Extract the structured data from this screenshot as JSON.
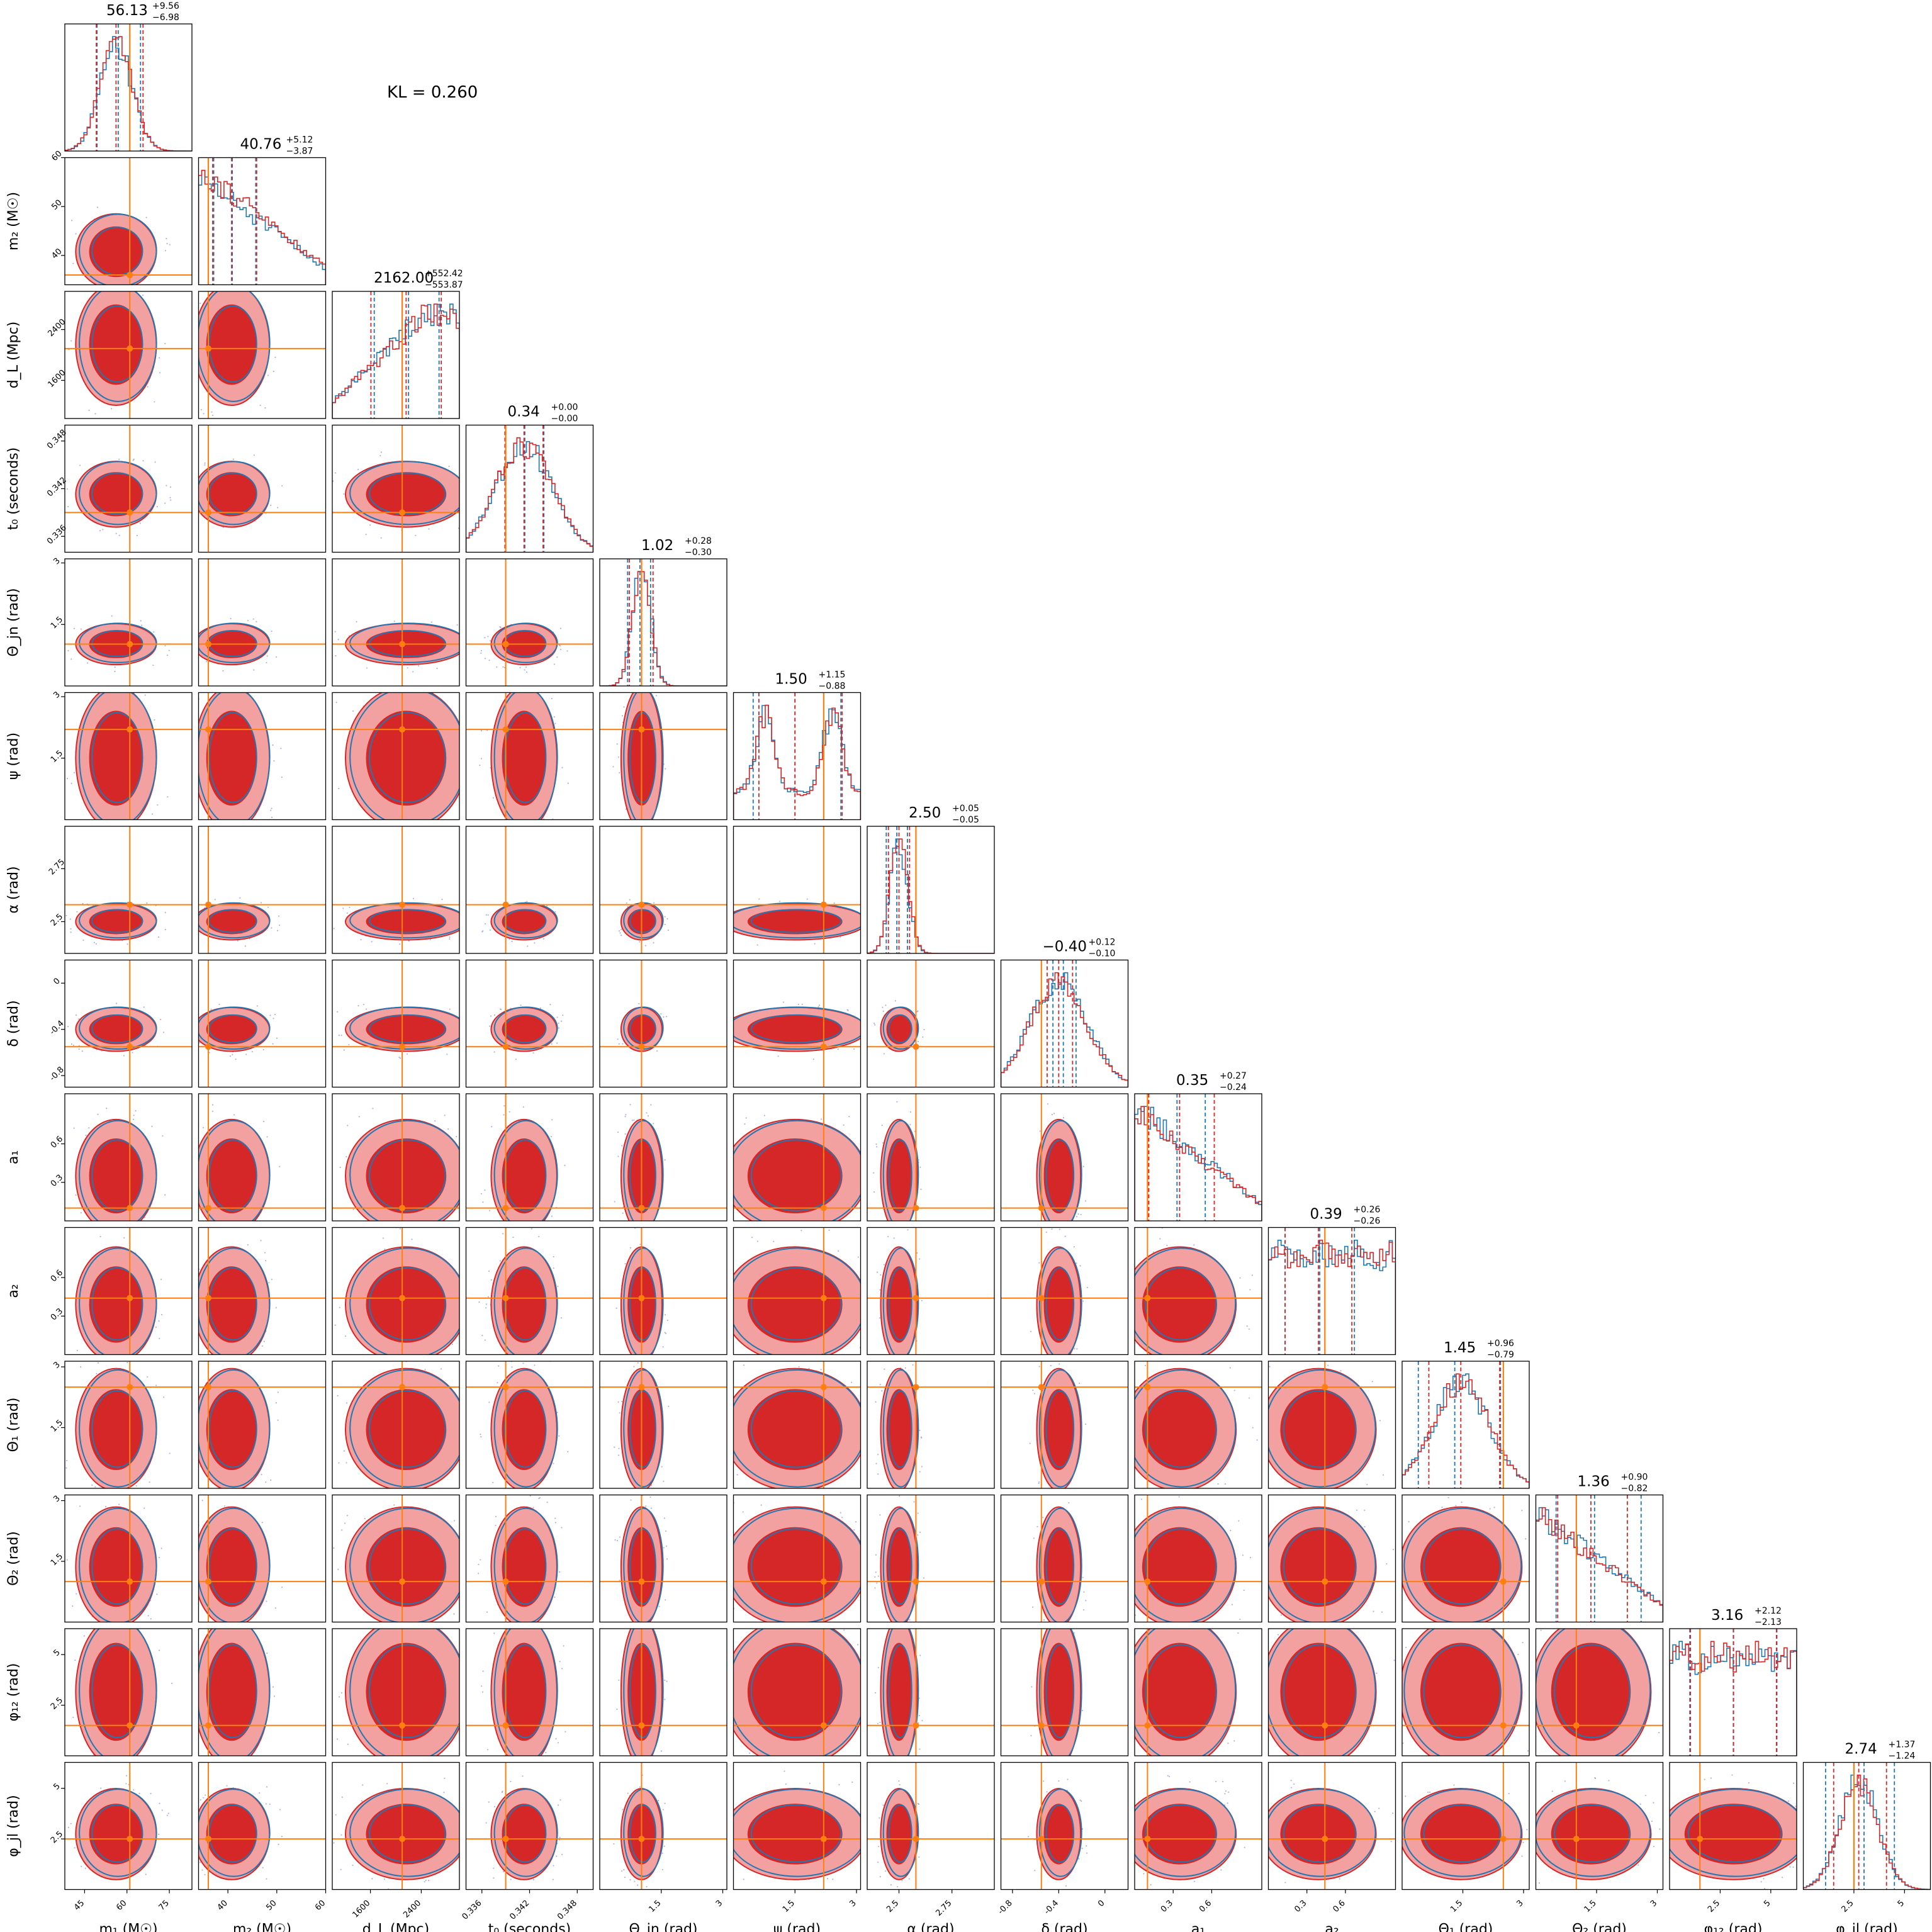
{
  "kl_text": "KL = 0.260",
  "colors": {
    "samples_a": "#d62728",
    "samples_a_light": "#f2a0a0",
    "samples_b": "#1f77b4",
    "truth": "#ff7f0e",
    "points": "#8080c8"
  },
  "chart_data": {
    "type": "corner",
    "title": "",
    "series": [
      {
        "name": "",
        "color": "#d62728"
      },
      {
        "name": "",
        "color": "#1f77b4"
      }
    ],
    "legend": "none",
    "grid": false,
    "parameters": [
      {
        "label": "m₁ (M☉)",
        "range": [
          38,
          83
        ],
        "ticks": [
          45,
          60,
          75
        ],
        "truth": 61,
        "quantile_text": {
          "median": "56.13",
          "plus": "+9.56",
          "minus": "−6.98"
        },
        "quantiles": {
          "red": [
            49.15,
            56.13,
            65.69
          ],
          "blue": [
            49.4,
            56.9,
            64.8
          ]
        },
        "hist_shape": "peak",
        "hist_peak": 0.25
      },
      {
        "label": "m₂ (M☉)",
        "range": [
          34,
          60
        ],
        "ticks": [
          40,
          50,
          60
        ],
        "truth": 36,
        "quantile_text": {
          "median": "40.76",
          "plus": "+5.12",
          "minus": "−3.87"
        },
        "quantiles": {
          "red": [
            36.89,
            40.76,
            45.88
          ],
          "blue": [
            37.1,
            40.9,
            45.7
          ]
        },
        "hist_shape": "decreasing"
      },
      {
        "label": "d_L (Mpc)",
        "range": [
          1000,
          3000
        ],
        "ticks": [
          1600,
          2400
        ],
        "truth": 2100,
        "quantile_text": {
          "median": "2162.00",
          "plus": "+552.42",
          "minus": "−553.87"
        },
        "quantiles": {
          "red": [
            1608.13,
            2162.0,
            2714.42
          ],
          "blue": [
            1660,
            2200,
            2680
          ]
        },
        "hist_shape": "increasing"
      },
      {
        "label": "t₀ (seconds)",
        "range": [
          0.334,
          0.35
        ],
        "ticks": [
          0.336,
          0.342,
          0.348
        ],
        "truth": 0.339,
        "quantile_text": {
          "median": "0.34",
          "plus": "+0.00",
          "minus": "−0.00"
        },
        "quantiles": {
          "red": [
            0.3389,
            0.3413,
            0.3437
          ],
          "blue": [
            0.3389,
            0.3414,
            0.3438
          ]
        },
        "hist_shape": "peak",
        "hist_peak": 0.45
      },
      {
        "label": "Θ_jn (rad)",
        "range": [
          0,
          3.1
        ],
        "ticks": [
          1.5,
          3.0
        ],
        "truth": 1.02,
        "quantile_text": {
          "median": "1.02",
          "plus": "+0.28",
          "minus": "−0.30"
        },
        "quantiles": {
          "red": [
            0.72,
            1.02,
            1.3
          ],
          "blue": [
            0.68,
            0.98,
            1.24
          ]
        },
        "hist_shape": "narrow"
      },
      {
        "label": "ψ (rad)",
        "range": [
          0,
          3.1
        ],
        "ticks": [
          1.5,
          3.0
        ],
        "truth": 2.2,
        "quantile_text": {
          "median": "1.50",
          "plus": "+1.15",
          "minus": "−0.88"
        },
        "quantiles": {
          "red": [
            0.62,
            1.5,
            2.65
          ],
          "blue": [
            0.48,
            1.5,
            2.62
          ]
        },
        "hist_shape": "bimodal"
      },
      {
        "label": "α (rad)",
        "range": [
          2.35,
          2.95
        ],
        "ticks": [
          2.5,
          2.75
        ],
        "truth": 2.58,
        "quantile_text": {
          "median": "2.50",
          "plus": "+0.05",
          "minus": "−0.05"
        },
        "quantiles": {
          "red": [
            2.45,
            2.5,
            2.55
          ],
          "blue": [
            2.44,
            2.49,
            2.54
          ]
        },
        "hist_shape": "narrow"
      },
      {
        "label": "δ (rad)",
        "range": [
          -0.9,
          0.2
        ],
        "ticks": [
          -0.8,
          -0.4,
          0.0
        ],
        "truth": -0.55,
        "quantile_text": {
          "median": "−0.40",
          "plus": "+0.12",
          "minus": "−0.10"
        },
        "quantiles": {
          "red": [
            -0.5,
            -0.4,
            -0.28
          ],
          "blue": [
            -0.45,
            -0.36,
            -0.25
          ]
        },
        "hist_shape": "peak",
        "hist_peak": 0.45
      },
      {
        "label": "a₁",
        "range": [
          0,
          0.99
        ],
        "ticks": [
          0.3,
          0.6
        ],
        "truth": 0.1,
        "quantile_text": {
          "median": "0.35",
          "plus": "+0.27",
          "minus": "−0.24"
        },
        "quantiles": {
          "red": [
            0.11,
            0.35,
            0.62
          ],
          "blue": [
            0.1,
            0.33,
            0.55
          ]
        },
        "hist_shape": "decreasing"
      },
      {
        "label": "a₂",
        "range": [
          0,
          0.99
        ],
        "ticks": [
          0.3,
          0.6
        ],
        "truth": 0.44,
        "quantile_text": {
          "median": "0.39",
          "plus": "+0.26",
          "minus": "−0.26"
        },
        "quantiles": {
          "red": [
            0.13,
            0.39,
            0.65
          ],
          "blue": [
            0.13,
            0.4,
            0.67
          ]
        },
        "hist_shape": "flat"
      },
      {
        "label": "Θ₁ (rad)",
        "range": [
          0,
          3.14
        ],
        "ticks": [
          1.5,
          3.0
        ],
        "truth": 2.5,
        "quantile_text": {
          "median": "1.45",
          "plus": "+0.96",
          "minus": "−0.79"
        },
        "quantiles": {
          "red": [
            0.66,
            1.45,
            2.41
          ],
          "blue": [
            0.4,
            1.3,
            2.43
          ]
        },
        "hist_shape": "peak",
        "hist_peak": 0.45
      },
      {
        "label": "Θ₂ (rad)",
        "range": [
          0,
          3.14
        ],
        "ticks": [
          1.5,
          3.0
        ],
        "truth": 1.0,
        "quantile_text": {
          "median": "1.36",
          "plus": "+0.90",
          "minus": "−0.82"
        },
        "quantiles": {
          "red": [
            0.54,
            1.36,
            2.26
          ],
          "blue": [
            0.5,
            1.45,
            2.6
          ]
        },
        "hist_shape": "decreasing"
      },
      {
        "label": "φ₁₂ (rad)",
        "range": [
          0,
          6.28
        ],
        "ticks": [
          2.5,
          5.0
        ],
        "truth": 1.5,
        "quantile_text": {
          "median": "3.16",
          "plus": "+2.12",
          "minus": "−2.13"
        },
        "quantiles": {
          "red": [
            1.03,
            3.16,
            5.28
          ],
          "blue": [
            1.0,
            3.15,
            5.3
          ]
        },
        "hist_shape": "flat"
      },
      {
        "label": "φ_jl (rad)",
        "range": [
          0,
          6.28
        ],
        "ticks": [
          2.5,
          5.0
        ],
        "truth": 2.5,
        "quantile_text": {
          "median": "2.74",
          "plus": "+1.37",
          "minus": "−1.24"
        },
        "quantiles": {
          "red": [
            1.5,
            2.74,
            4.11
          ],
          "blue": [
            1.1,
            3.0,
            4.5
          ]
        },
        "hist_shape": "peak",
        "hist_peak": 0.3
      }
    ]
  }
}
